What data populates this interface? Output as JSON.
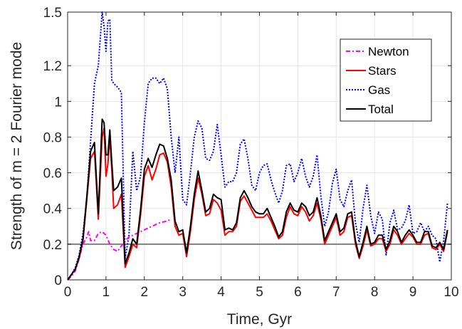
{
  "chart_data": {
    "type": "line",
    "xlabel": "Time, Gyr",
    "ylabel": "Strength of m = 2 Fourier mode",
    "xlim": [
      0,
      10
    ],
    "ylim": [
      0,
      1.5
    ],
    "xticks": [
      "0",
      "1",
      "2",
      "3",
      "4",
      "5",
      "6",
      "7",
      "8",
      "9",
      "10"
    ],
    "yticks": [
      "0",
      "0.2",
      "0.4",
      "0.6",
      "0.8",
      "1",
      "1.2",
      "1.5"
    ],
    "ytick_values": [
      0,
      0.2,
      0.4,
      0.6,
      0.8,
      1.0,
      1.2,
      1.5
    ],
    "grid": true,
    "legend_position": "top-right",
    "reference_line": {
      "y": 0.2,
      "color": "#808080"
    },
    "series": [
      {
        "name": "Newton",
        "color": "#ff00ff",
        "style": "dashdot",
        "x": [
          0,
          0.1,
          0.2,
          0.3,
          0.4,
          0.5,
          0.55,
          0.6,
          0.7,
          0.8,
          0.9,
          1.0,
          1.1,
          1.2,
          1.3,
          1.4,
          1.5,
          1.6,
          1.7,
          1.8,
          1.9,
          2.0,
          2.2,
          2.4,
          2.6,
          2.7
        ],
        "y": [
          0.0,
          0.02,
          0.05,
          0.12,
          0.2,
          0.24,
          0.27,
          0.22,
          0.22,
          0.26,
          0.27,
          0.25,
          0.2,
          0.17,
          0.16,
          0.19,
          0.22,
          0.24,
          0.25,
          0.26,
          0.27,
          0.28,
          0.3,
          0.32,
          0.33,
          0.34
        ]
      },
      {
        "name": "Stars",
        "color": "#ff0000",
        "style": "solid",
        "x": [
          0,
          0.1,
          0.2,
          0.3,
          0.4,
          0.5,
          0.6,
          0.7,
          0.8,
          0.9,
          0.95,
          1.0,
          1.05,
          1.1,
          1.15,
          1.2,
          1.3,
          1.4,
          1.5,
          1.6,
          1.7,
          1.8,
          1.9,
          2.0,
          2.1,
          2.2,
          2.3,
          2.4,
          2.5,
          2.6,
          2.7,
          2.8,
          2.9,
          3.0,
          3.1,
          3.2,
          3.3,
          3.4,
          3.5,
          3.6,
          3.7,
          3.8,
          3.9,
          4.0,
          4.1,
          4.2,
          4.3,
          4.4,
          4.5,
          4.6,
          4.7,
          4.8,
          4.9,
          5.0,
          5.1,
          5.2,
          5.3,
          5.4,
          5.5,
          5.6,
          5.7,
          5.8,
          5.9,
          6.0,
          6.1,
          6.2,
          6.3,
          6.4,
          6.5,
          6.6,
          6.7,
          6.8,
          6.9,
          7.0,
          7.1,
          7.2,
          7.3,
          7.4,
          7.5,
          7.6,
          7.7,
          7.8,
          7.9,
          8.0,
          8.1,
          8.2,
          8.3,
          8.4,
          8.5,
          8.6,
          8.7,
          8.8,
          8.9,
          9.0,
          9.1,
          9.2,
          9.3,
          9.4,
          9.5,
          9.6,
          9.7,
          9.8,
          9.9
        ],
        "y": [
          0.0,
          0.03,
          0.06,
          0.12,
          0.22,
          0.45,
          0.68,
          0.72,
          0.34,
          0.8,
          0.85,
          0.58,
          0.65,
          0.8,
          0.62,
          0.4,
          0.42,
          0.48,
          0.07,
          0.13,
          0.2,
          0.18,
          0.36,
          0.58,
          0.64,
          0.56,
          0.62,
          0.7,
          0.71,
          0.66,
          0.52,
          0.3,
          0.25,
          0.26,
          0.13,
          0.27,
          0.45,
          0.57,
          0.48,
          0.36,
          0.37,
          0.45,
          0.43,
          0.39,
          0.25,
          0.27,
          0.27,
          0.3,
          0.44,
          0.47,
          0.43,
          0.39,
          0.35,
          0.35,
          0.35,
          0.37,
          0.33,
          0.28,
          0.23,
          0.25,
          0.35,
          0.41,
          0.37,
          0.36,
          0.41,
          0.38,
          0.33,
          0.36,
          0.43,
          0.34,
          0.2,
          0.25,
          0.3,
          0.35,
          0.25,
          0.27,
          0.35,
          0.36,
          0.2,
          0.12,
          0.19,
          0.28,
          0.19,
          0.2,
          0.23,
          0.23,
          0.16,
          0.2,
          0.28,
          0.25,
          0.2,
          0.23,
          0.26,
          0.24,
          0.2,
          0.2,
          0.25,
          0.26,
          0.18,
          0.17,
          0.2,
          0.16,
          0.27
        ]
      },
      {
        "name": "Gas",
        "color": "#0000ff",
        "style": "dotted",
        "x": [
          0,
          0.1,
          0.2,
          0.3,
          0.4,
          0.5,
          0.6,
          0.7,
          0.8,
          0.9,
          0.95,
          1.0,
          1.05,
          1.1,
          1.15,
          1.2,
          1.3,
          1.4,
          1.5,
          1.6,
          1.7,
          1.8,
          1.9,
          2.0,
          2.1,
          2.2,
          2.3,
          2.4,
          2.5,
          2.6,
          2.7,
          2.8,
          2.9,
          3.0,
          3.1,
          3.2,
          3.3,
          3.4,
          3.5,
          3.6,
          3.7,
          3.8,
          3.9,
          4.0,
          4.1,
          4.2,
          4.3,
          4.4,
          4.5,
          4.6,
          4.7,
          4.8,
          4.9,
          5.0,
          5.1,
          5.2,
          5.3,
          5.4,
          5.5,
          5.6,
          5.7,
          5.8,
          5.9,
          6.0,
          6.1,
          6.2,
          6.3,
          6.4,
          6.5,
          6.6,
          6.7,
          6.8,
          6.9,
          7.0,
          7.1,
          7.2,
          7.3,
          7.4,
          7.5,
          7.6,
          7.7,
          7.8,
          7.9,
          8.0,
          8.1,
          8.2,
          8.3,
          8.4,
          8.5,
          8.6,
          8.7,
          8.8,
          8.9,
          9.0,
          9.1,
          9.2,
          9.3,
          9.4,
          9.5,
          9.6,
          9.7,
          9.8,
          9.9
        ],
        "y": [
          0.0,
          0.03,
          0.07,
          0.14,
          0.26,
          0.46,
          0.78,
          1.1,
          1.2,
          1.5,
          1.42,
          1.28,
          1.45,
          1.46,
          1.12,
          1.1,
          1.08,
          1.05,
          0.12,
          0.25,
          0.72,
          0.5,
          0.58,
          0.88,
          1.1,
          1.13,
          1.13,
          1.1,
          1.13,
          1.07,
          0.8,
          0.6,
          0.8,
          0.45,
          0.42,
          0.6,
          0.8,
          0.89,
          0.85,
          0.68,
          0.67,
          0.72,
          0.87,
          0.7,
          0.52,
          0.55,
          0.55,
          0.6,
          0.76,
          0.79,
          0.68,
          0.53,
          0.5,
          0.6,
          0.64,
          0.65,
          0.56,
          0.49,
          0.43,
          0.5,
          0.64,
          0.65,
          0.55,
          0.6,
          0.68,
          0.58,
          0.52,
          0.58,
          0.7,
          0.47,
          0.3,
          0.38,
          0.54,
          0.62,
          0.45,
          0.41,
          0.5,
          0.56,
          0.32,
          0.21,
          0.4,
          0.53,
          0.36,
          0.26,
          0.38,
          0.34,
          0.14,
          0.32,
          0.39,
          0.28,
          0.29,
          0.33,
          0.42,
          0.26,
          0.27,
          0.32,
          0.27,
          0.3,
          0.25,
          0.23,
          0.1,
          0.22,
          0.43
        ]
      },
      {
        "name": "Total",
        "color": "#000000",
        "style": "solid",
        "x": [
          0,
          0.1,
          0.2,
          0.3,
          0.4,
          0.5,
          0.6,
          0.7,
          0.8,
          0.9,
          0.95,
          1.0,
          1.05,
          1.1,
          1.15,
          1.2,
          1.3,
          1.4,
          1.5,
          1.6,
          1.7,
          1.8,
          1.9,
          2.0,
          2.1,
          2.2,
          2.3,
          2.4,
          2.5,
          2.6,
          2.7,
          2.8,
          2.9,
          3.0,
          3.1,
          3.2,
          3.3,
          3.4,
          3.5,
          3.6,
          3.7,
          3.8,
          3.9,
          4.0,
          4.1,
          4.2,
          4.3,
          4.4,
          4.5,
          4.6,
          4.7,
          4.8,
          4.9,
          5.0,
          5.1,
          5.2,
          5.3,
          5.4,
          5.5,
          5.6,
          5.7,
          5.8,
          5.9,
          6.0,
          6.1,
          6.2,
          6.3,
          6.4,
          6.5,
          6.6,
          6.7,
          6.8,
          6.9,
          7.0,
          7.1,
          7.2,
          7.3,
          7.4,
          7.5,
          7.6,
          7.7,
          7.8,
          7.9,
          8.0,
          8.1,
          8.2,
          8.3,
          8.4,
          8.5,
          8.6,
          8.7,
          8.8,
          8.9,
          9.0,
          9.1,
          9.2,
          9.3,
          9.4,
          9.5,
          9.6,
          9.7,
          9.8,
          9.9
        ],
        "y": [
          0.0,
          0.03,
          0.06,
          0.13,
          0.23,
          0.47,
          0.72,
          0.77,
          0.37,
          0.9,
          0.88,
          0.7,
          0.7,
          0.84,
          0.66,
          0.5,
          0.52,
          0.57,
          0.09,
          0.15,
          0.23,
          0.2,
          0.39,
          0.62,
          0.68,
          0.63,
          0.7,
          0.76,
          0.75,
          0.68,
          0.56,
          0.33,
          0.27,
          0.28,
          0.15,
          0.3,
          0.48,
          0.61,
          0.5,
          0.38,
          0.4,
          0.48,
          0.46,
          0.45,
          0.28,
          0.29,
          0.28,
          0.32,
          0.46,
          0.5,
          0.46,
          0.41,
          0.38,
          0.37,
          0.37,
          0.4,
          0.35,
          0.3,
          0.24,
          0.27,
          0.38,
          0.43,
          0.39,
          0.38,
          0.43,
          0.41,
          0.36,
          0.38,
          0.46,
          0.36,
          0.22,
          0.27,
          0.32,
          0.37,
          0.27,
          0.29,
          0.37,
          0.38,
          0.22,
          0.13,
          0.21,
          0.3,
          0.2,
          0.21,
          0.25,
          0.25,
          0.17,
          0.22,
          0.3,
          0.27,
          0.21,
          0.25,
          0.28,
          0.25,
          0.21,
          0.21,
          0.27,
          0.27,
          0.19,
          0.18,
          0.21,
          0.17,
          0.28
        ]
      }
    ]
  }
}
